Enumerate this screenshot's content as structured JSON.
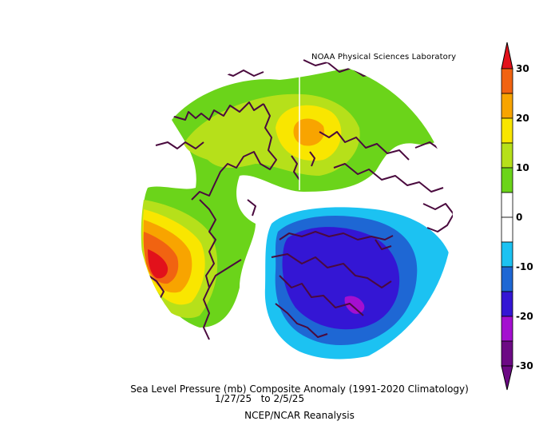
{
  "credit": "NOAA Physical Sciences Laboratory",
  "caption": {
    "title": "Sea Level Pressure (mb) Composite Anomaly (1991-2020 Climatology)",
    "dates": "1/27/25   to 2/5/25",
    "source": "NCEP/NCAR Reanalysis"
  },
  "colorbar": {
    "ticks": [
      "30",
      "20",
      "10",
      "0",
      "-10",
      "-20",
      "-30"
    ],
    "colors": [
      "#e2111b",
      "#f16311",
      "#f8a400",
      "#f9e600",
      "#b6e01a",
      "#6bd41a",
      "#ffffff",
      "#ffffff",
      "#1cc2f2",
      "#1e67d4",
      "#3416d4",
      "#a40fd0",
      "#6c0a84"
    ]
  },
  "map_colors": {
    "positive_light": "#6bd41a",
    "positive_mid": "#b6e01a",
    "positive_strong": "#f9e600",
    "positive_orange": "#f8a400",
    "positive_dark_orange": "#f16311",
    "positive_red": "#e2111b",
    "negative_light": "#1cc2f2",
    "negative_mid": "#1e67d4",
    "negative_strong": "#3416d4",
    "negative_purple": "#a40fd0",
    "coastline": "#4a0a3e"
  }
}
